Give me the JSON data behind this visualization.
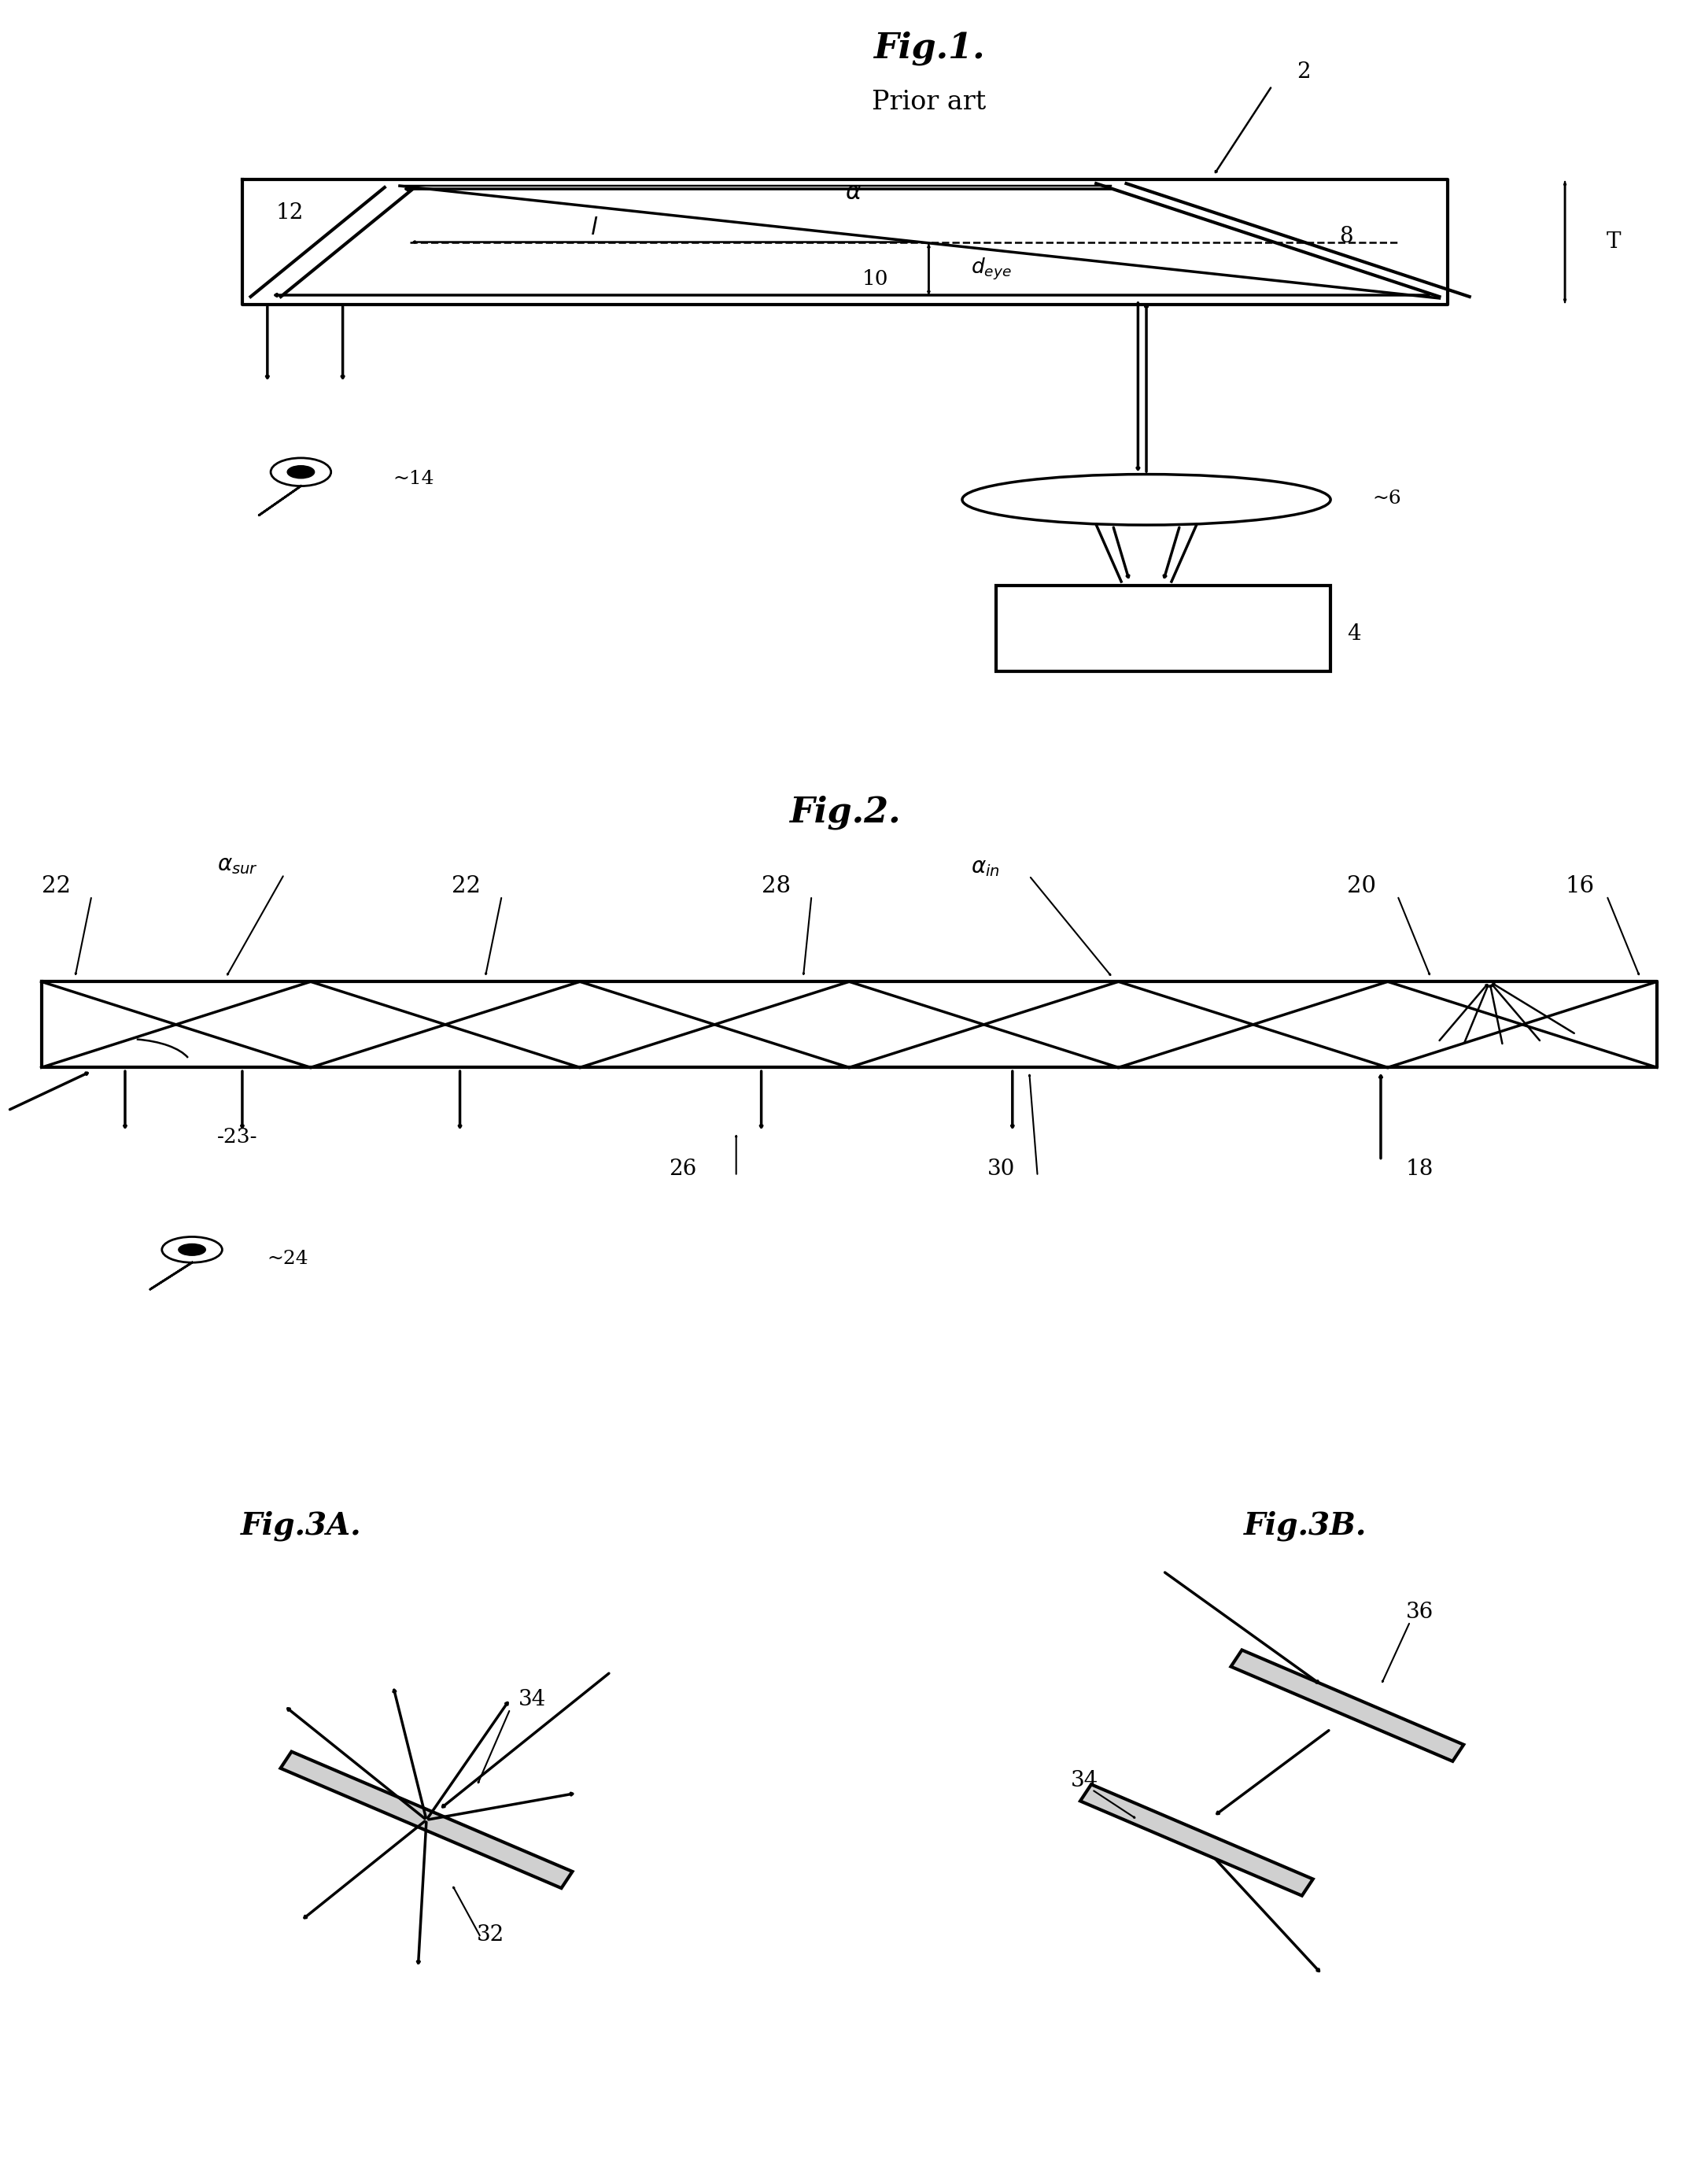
{
  "fig1_title": "Fig.1.",
  "fig1_subtitle": "Prior art",
  "fig2_title": "Fig.2.",
  "fig3a_title": "Fig.3A.",
  "fig3b_title": "Fig.3B.",
  "bg_color": "#ffffff",
  "line_color": "#000000",
  "lw": 2.5,
  "lw_thick": 3.0
}
